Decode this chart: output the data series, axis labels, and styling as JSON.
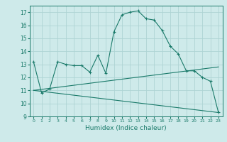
{
  "xlabel": "Humidex (Indice chaleur)",
  "bg_color": "#ceeaea",
  "grid_color": "#aed4d4",
  "line_color": "#1a7a6a",
  "xlim": [
    -0.5,
    23.5
  ],
  "ylim": [
    9,
    17.5
  ],
  "yticks": [
    9,
    10,
    11,
    12,
    13,
    14,
    15,
    16,
    17
  ],
  "xticks": [
    0,
    1,
    2,
    3,
    4,
    5,
    6,
    7,
    8,
    9,
    10,
    11,
    12,
    13,
    14,
    15,
    16,
    17,
    18,
    19,
    20,
    21,
    22,
    23
  ],
  "curve1_x": [
    0,
    1,
    2,
    3,
    4,
    5,
    6,
    7,
    8,
    9,
    10,
    11,
    12,
    13,
    14,
    15,
    16,
    17,
    18,
    19,
    20,
    21,
    22,
    23
  ],
  "curve1_y": [
    13.2,
    10.8,
    11.1,
    13.2,
    13.0,
    12.9,
    12.9,
    12.4,
    13.7,
    12.3,
    15.5,
    16.8,
    17.0,
    17.1,
    16.5,
    16.4,
    15.6,
    14.4,
    13.8,
    12.5,
    12.5,
    12.0,
    11.7,
    9.3
  ],
  "curve2_x": [
    0,
    23
  ],
  "curve2_y": [
    11.0,
    12.8
  ],
  "curve3_x": [
    0,
    23
  ],
  "curve3_y": [
    11.0,
    9.3
  ]
}
